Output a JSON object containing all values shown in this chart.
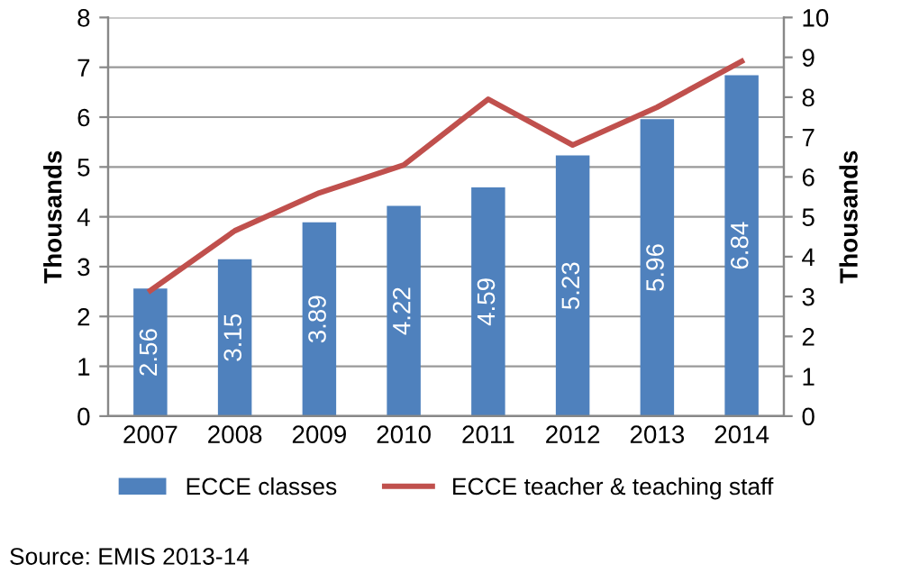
{
  "chart_data": {
    "type": "bar",
    "categories": [
      "2007",
      "2008",
      "2009",
      "2010",
      "2011",
      "2012",
      "2013",
      "2014"
    ],
    "series": [
      {
        "name": "ECCE classes",
        "color": "#4f81bd",
        "values": [
          2.56,
          3.15,
          3.89,
          4.22,
          4.59,
          5.23,
          5.96,
          6.84
        ],
        "value_labels": [
          "2.56",
          "3.15",
          "3.89",
          "4.22",
          "4.59",
          "5.23",
          "5.96",
          "6.84"
        ]
      },
      {
        "name": "ECCE teacher & teaching staff",
        "type": "line",
        "axis": "y2",
        "color": "#c0504d",
        "values": [
          3.15,
          4.65,
          5.6,
          6.3,
          7.95,
          6.8,
          7.75,
          8.9
        ]
      }
    ],
    "ylabel": "Thousands",
    "y2label": "Thousands",
    "ylim": [
      0,
      8
    ],
    "yticks": [
      0,
      1,
      2,
      3,
      4,
      5,
      6,
      7,
      8
    ],
    "y2lim": [
      0,
      10
    ],
    "y2ticks": [
      0,
      1,
      2,
      3,
      4,
      5,
      6,
      7,
      8,
      9,
      10
    ],
    "grid": "y",
    "legend": "bottom",
    "marker": "none",
    "line_style": "solid",
    "annotations": [
      "Source: EMIS 2013-14"
    ]
  }
}
